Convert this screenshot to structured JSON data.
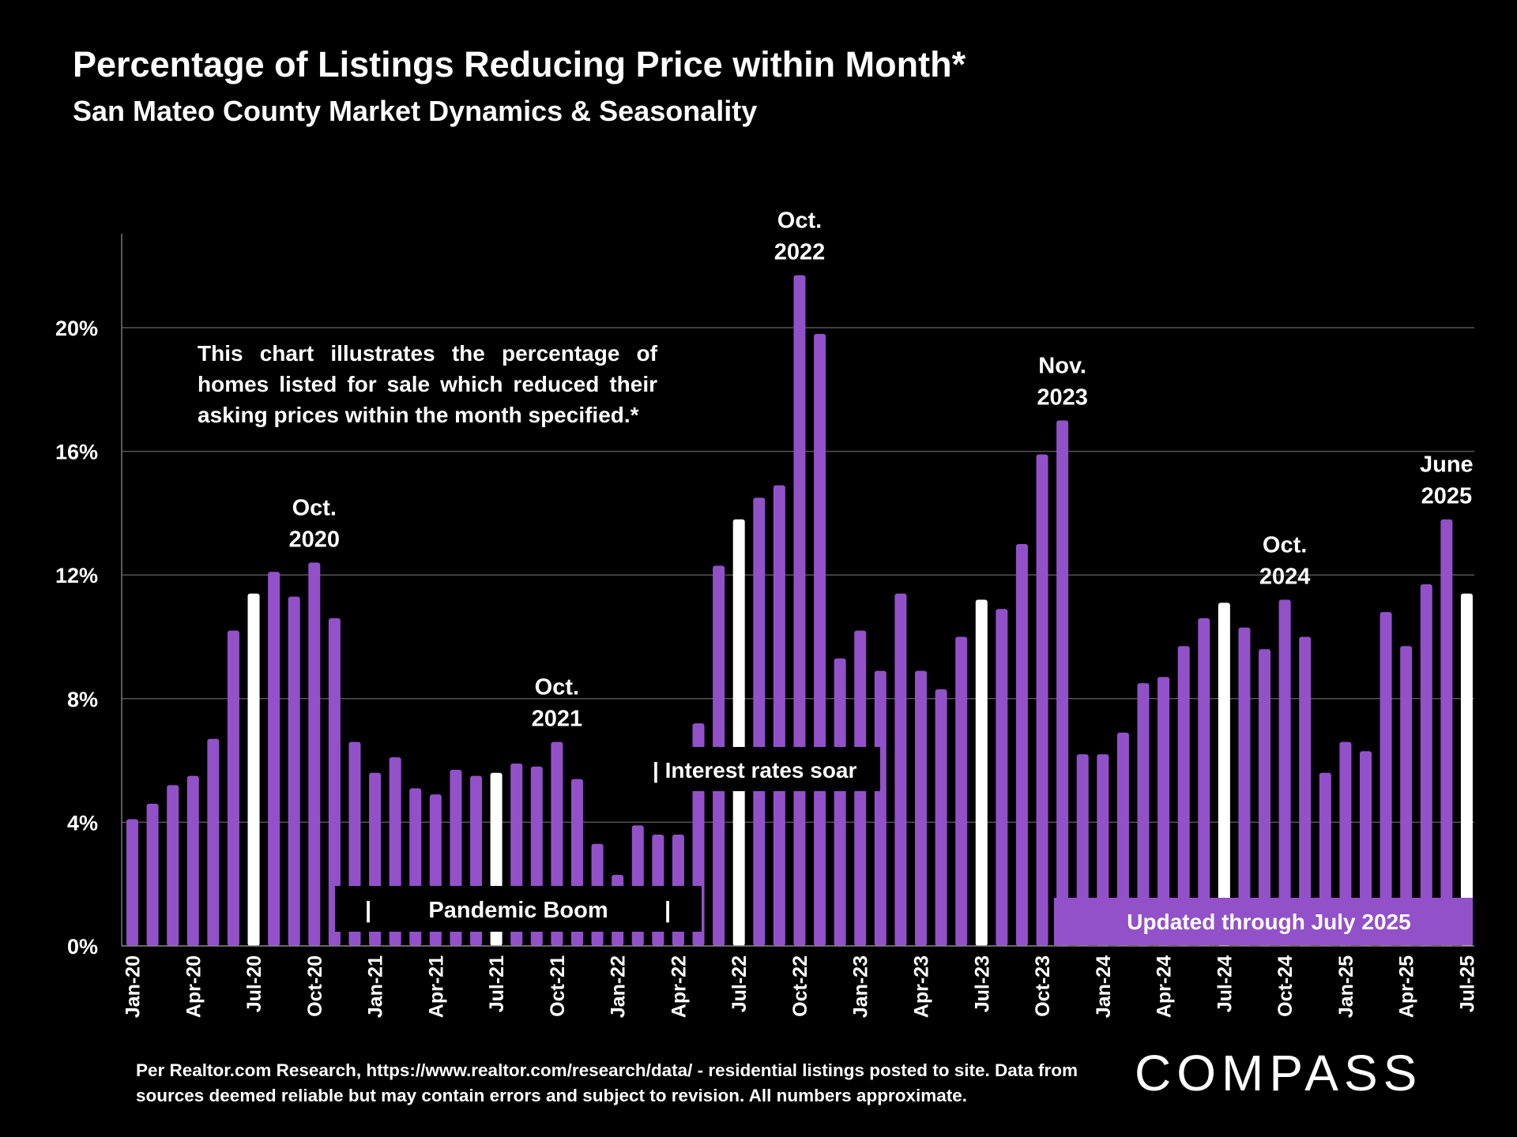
{
  "title": "Percentage of Listings Reducing Price within Month*",
  "subtitle": "San Mateo County Market Dynamics & Seasonality",
  "note": "This chart illustrates the percentage of homes listed for sale which reduced their asking prices within the month specified.*",
  "footnote": "Per Realtor.com Research, https://www.realtor.com/research/data/ - residential listings posted to site.  Data from sources deemed reliable but may contain errors and subject to revision. All numbers approximate.",
  "logo": "COMPASS",
  "colors": {
    "bar": "#9251c9",
    "highlight": "#ffffff",
    "background": "#000000",
    "grid": "#555555",
    "banner": "#9251c9"
  },
  "chart_data": {
    "type": "bar",
    "title": "Percentage of Listings Reducing Price within Month*",
    "subtitle": "San Mateo County Market Dynamics & Seasonality",
    "xlabel": "",
    "ylabel": "",
    "ylim": [
      0,
      23
    ],
    "yticks": [
      "0%",
      "4%",
      "8%",
      "12%",
      "16%",
      "20%"
    ],
    "ytick_values": [
      0,
      4,
      8,
      12,
      16,
      20
    ],
    "grid": true,
    "categories": [
      "Jan-20",
      "Feb-20",
      "Mar-20",
      "Apr-20",
      "May-20",
      "Jun-20",
      "Jul-20",
      "Aug-20",
      "Sep-20",
      "Oct-20",
      "Nov-20",
      "Dec-20",
      "Jan-21",
      "Feb-21",
      "Mar-21",
      "Apr-21",
      "May-21",
      "Jun-21",
      "Jul-21",
      "Aug-21",
      "Sep-21",
      "Oct-21",
      "Nov-21",
      "Dec-21",
      "Jan-22",
      "Feb-22",
      "Mar-22",
      "Apr-22",
      "May-22",
      "Jun-22",
      "Jul-22",
      "Aug-22",
      "Sep-22",
      "Oct-22",
      "Nov-22",
      "Dec-22",
      "Jan-23",
      "Feb-23",
      "Mar-23",
      "Apr-23",
      "May-23",
      "Jun-23",
      "Jul-23",
      "Aug-23",
      "Sep-23",
      "Oct-23",
      "Nov-23",
      "Dec-23",
      "Jan-24",
      "Feb-24",
      "Mar-24",
      "Apr-24",
      "May-24",
      "Jun-24",
      "Jul-24",
      "Aug-24",
      "Sep-24",
      "Oct-24",
      "Nov-24",
      "Dec-24",
      "Jan-25",
      "Feb-25",
      "Mar-25",
      "Apr-25",
      "May-25",
      "Jun-25",
      "Jul-25"
    ],
    "xtick_labels": [
      "Jan-20",
      "Apr-20",
      "Jul-20",
      "Oct-20",
      "Jan-21",
      "Apr-21",
      "Jul-21",
      "Oct-21",
      "Jan-22",
      "Apr-22",
      "Jul-22",
      "Oct-22",
      "Jan-23",
      "Apr-23",
      "Jul-23",
      "Oct-23",
      "Jan-24",
      "Apr-24",
      "Jul-24",
      "Oct-24",
      "Jan-25",
      "Apr-25",
      "Jul-25"
    ],
    "values": [
      4.1,
      4.6,
      5.2,
      5.5,
      6.7,
      10.2,
      11.4,
      12.1,
      11.3,
      12.4,
      10.6,
      6.6,
      5.6,
      6.1,
      5.1,
      4.9,
      5.7,
      5.5,
      5.6,
      5.9,
      5.8,
      6.6,
      5.4,
      3.3,
      2.3,
      3.9,
      3.6,
      3.6,
      7.2,
      12.3,
      13.8,
      14.5,
      14.9,
      21.7,
      19.8,
      9.3,
      10.2,
      8.9,
      11.4,
      8.9,
      8.3,
      10.0,
      11.2,
      10.9,
      13.0,
      15.9,
      17.0,
      6.2,
      6.2,
      6.9,
      8.5,
      8.7,
      9.7,
      10.6,
      11.1,
      10.3,
      9.6,
      11.2,
      10.0,
      5.6,
      6.6,
      6.3,
      10.8,
      9.7,
      11.7,
      13.8,
      11.4
    ],
    "highlight_indices": [
      6,
      18,
      30,
      42,
      54,
      66
    ],
    "highlight_note": "July bars shown in white",
    "annotations": [
      {
        "index": 9,
        "lines": [
          "Oct.",
          "2020"
        ]
      },
      {
        "index": 21,
        "lines": [
          "Oct.",
          "2021"
        ]
      },
      {
        "index": 33,
        "lines": [
          "Oct.",
          "2022"
        ]
      },
      {
        "index": 46,
        "lines": [
          "Nov.",
          "2023"
        ]
      },
      {
        "index": 57,
        "lines": [
          "Oct.",
          "2024"
        ]
      },
      {
        "index": 65,
        "lines": [
          "June",
          "2025"
        ]
      }
    ],
    "callouts": {
      "pandemic": {
        "bar": "|",
        "text": "Pandemic Boom"
      },
      "rates": "| Interest rates soar",
      "updated": "Updated through July 2025"
    }
  }
}
